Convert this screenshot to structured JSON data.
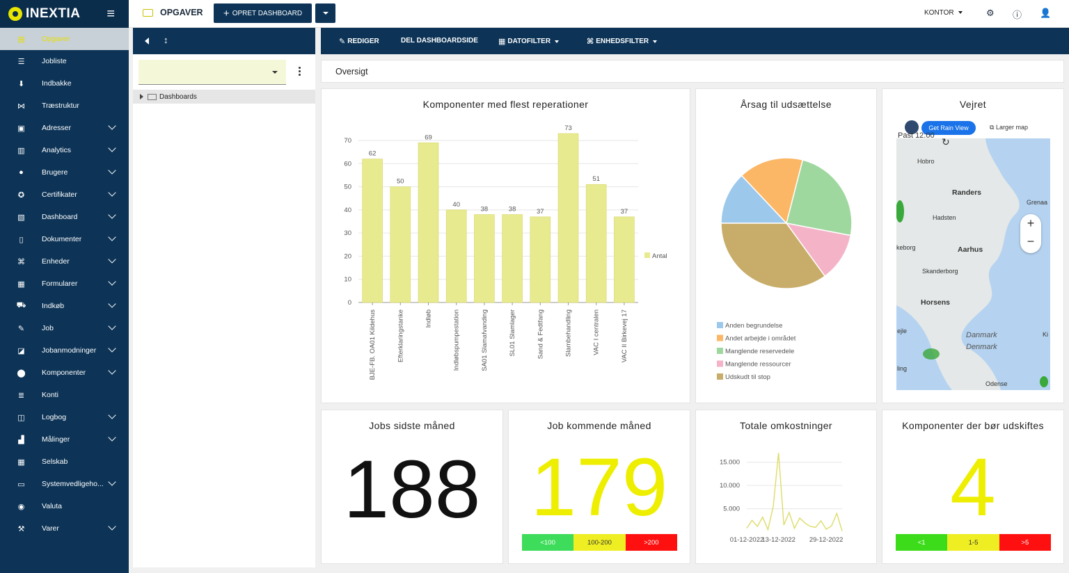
{
  "brand": {
    "name": "INEXTIA"
  },
  "sidebar": {
    "items": [
      {
        "label": "Opgaver",
        "icon": "tasks-icon",
        "glyph": "▤",
        "expandable": false,
        "active": true
      },
      {
        "label": "Jobliste",
        "icon": "list-icon",
        "glyph": "☰",
        "expandable": false
      },
      {
        "label": "Indbakke",
        "icon": "inbox-icon",
        "glyph": "⬇",
        "expandable": false
      },
      {
        "label": "Træstruktur",
        "icon": "tree-icon",
        "glyph": "⋈",
        "expandable": false
      },
      {
        "label": "Adresser",
        "icon": "address-icon",
        "glyph": "▣",
        "expandable": true
      },
      {
        "label": "Analytics",
        "icon": "analytics-icon",
        "glyph": "▥",
        "expandable": true
      },
      {
        "label": "Brugere",
        "icon": "users-icon",
        "glyph": "●",
        "expandable": true
      },
      {
        "label": "Certifikater",
        "icon": "certificate-icon",
        "glyph": "✪",
        "expandable": true
      },
      {
        "label": "Dashboard",
        "icon": "dashboard-icon",
        "glyph": "▧",
        "expandable": true
      },
      {
        "label": "Dokumenter",
        "icon": "document-icon",
        "glyph": "▯",
        "expandable": true
      },
      {
        "label": "Enheder",
        "icon": "devices-icon",
        "glyph": "⌘",
        "expandable": true
      },
      {
        "label": "Formularer",
        "icon": "form-icon",
        "glyph": "▦",
        "expandable": true
      },
      {
        "label": "Indkøb",
        "icon": "cart-icon",
        "glyph": "⛟",
        "expandable": true
      },
      {
        "label": "Job",
        "icon": "wrench-icon",
        "glyph": "✎",
        "expandable": true
      },
      {
        "label": "Jobanmodninger",
        "icon": "job-request-icon",
        "glyph": "◪",
        "expandable": true
      },
      {
        "label": "Komponenter",
        "icon": "component-icon",
        "glyph": "⬤",
        "expandable": true
      },
      {
        "label": "Konti",
        "icon": "accounts-icon",
        "glyph": "≣",
        "expandable": false
      },
      {
        "label": "Logbog",
        "icon": "logbook-icon",
        "glyph": "◫",
        "expandable": true
      },
      {
        "label": "Målinger",
        "icon": "measurement-icon",
        "glyph": "▟",
        "expandable": true
      },
      {
        "label": "Selskab",
        "icon": "company-icon",
        "glyph": "▦",
        "expandable": false
      },
      {
        "label": "Systemvedligeho...",
        "icon": "system-icon",
        "glyph": "▭",
        "expandable": true
      },
      {
        "label": "Valuta",
        "icon": "currency-icon",
        "glyph": "◉",
        "expandable": false
      },
      {
        "label": "Varer",
        "icon": "hammer-icon",
        "glyph": "⚒",
        "expandable": true
      }
    ]
  },
  "topbar": {
    "title": "OPGAVER",
    "create_button": "OPRET DASHBOARD",
    "office": "KONTOR"
  },
  "tree": {
    "node_label": "Dashboards"
  },
  "toolbar": {
    "edit": "REDIGER",
    "share": "DEL DASHBOARDSIDE",
    "date_filter": "DATOFILTER",
    "unit_filter": "ENHEDSFILTER"
  },
  "overview": "Oversigt",
  "bar_card": {
    "title": "Komponenter med flest reperationer"
  },
  "pie_card": {
    "title": "Årsag til udsættelse"
  },
  "weather_card": {
    "title": "Vejret",
    "view_button": "Get Rain View",
    "larger_map": "Larger map",
    "past_label": "Past 12:00",
    "places": [
      "Hobro",
      "Randers",
      "Grenaa",
      "Hadsten",
      "keborg",
      "Aarhus",
      "Skanderborg",
      "Horsens",
      "ejle",
      "Danmark",
      "Denmark",
      "ling",
      "Odense",
      "Ki"
    ],
    "colors": {
      "water": "#b5d3f0",
      "land": "#e4e8e8",
      "rain": "#3aa83a"
    }
  },
  "jobs_last_month": {
    "title": "Jobs sidste måned",
    "value": "188"
  },
  "jobs_next_month": {
    "title": "Job kommende måned",
    "value": "179",
    "bands": [
      {
        "label": "<100",
        "color": "#3ddc5a"
      },
      {
        "label": "100-200",
        "color": "#eeee22"
      },
      {
        "label": ">200",
        "color": "#ff1010"
      }
    ]
  },
  "total_costs": {
    "title": "Totale omkostninger"
  },
  "components_replace": {
    "title": "Komponenter der bør udskiftes",
    "value": "4",
    "bands": [
      {
        "label": "<1",
        "color": "#3ddc1a"
      },
      {
        "label": "1-5",
        "color": "#eeee22"
      },
      {
        "label": ">5",
        "color": "#ff1010"
      }
    ]
  },
  "colors": {
    "navy": "#0d3457",
    "accent": "#e6e600",
    "bar": "#e8ea8f",
    "line": "#dcdc6a"
  },
  "chart_data": [
    {
      "type": "bar",
      "title": "Komponenter med flest reperationer",
      "categories": [
        "BJE-FB. OA01 Kildehus",
        "Efterklaringstanke",
        "Indløb",
        "Indløbspumpestation",
        "SA01 Slamafvanding",
        "SL01 Slamlager",
        "Sand & Fedtfang",
        "Slambehandling",
        "VAC I centralen",
        "VAC II Birkevej 17"
      ],
      "series": [
        {
          "name": "Antal",
          "values": [
            62,
            50,
            69,
            40,
            38,
            38,
            37,
            73,
            51,
            37
          ]
        }
      ],
      "ylim": [
        0,
        70
      ],
      "yticks": [
        0,
        10,
        20,
        30,
        40,
        50,
        60,
        70
      ],
      "legend": "right",
      "color": "#e8ea8f"
    },
    {
      "type": "pie",
      "title": "Årsag til udsættelse",
      "labels": [
        "Anden begrundelse",
        "Andet arbejde i området",
        "Manglende reservedele",
        "Manglende ressourcer",
        "Udskudt til stop"
      ],
      "values": [
        13,
        16,
        24,
        12,
        35
      ],
      "colors": [
        "#9cc8ec",
        "#fbb766",
        "#9fd89f",
        "#f5b3c8",
        "#c8ad6a"
      ],
      "legend": "bottom"
    },
    {
      "type": "line",
      "title": "Totale omkostninger",
      "x": [
        "01-12-2022",
        "04-12-2022",
        "06-12-2022",
        "08-12-2022",
        "10-12-2022",
        "12-12-2022",
        "13-12-2022",
        "14-12-2022",
        "15-12-2022",
        "17-12-2022",
        "19-12-2022",
        "21-12-2022",
        "23-12-2022",
        "25-12-2022",
        "27-12-2022",
        "29-12-2022",
        "31-12-2022",
        "02-01-2023",
        "04-01-2023"
      ],
      "values": [
        800,
        2500,
        1200,
        3200,
        500,
        5500,
        17000,
        1500,
        4200,
        800,
        3000,
        1900,
        1200,
        1000,
        2400,
        600,
        1300,
        4000,
        200
      ],
      "xticks": [
        "01-12-2022",
        "13-12-2022",
        "29-12-2022"
      ],
      "yticks": [
        5000,
        10000,
        15000
      ],
      "ytick_labels": [
        "5.000",
        "10.000",
        "15.000"
      ],
      "ylim": [
        0,
        17500
      ],
      "color": "#dcdc6a"
    }
  ]
}
